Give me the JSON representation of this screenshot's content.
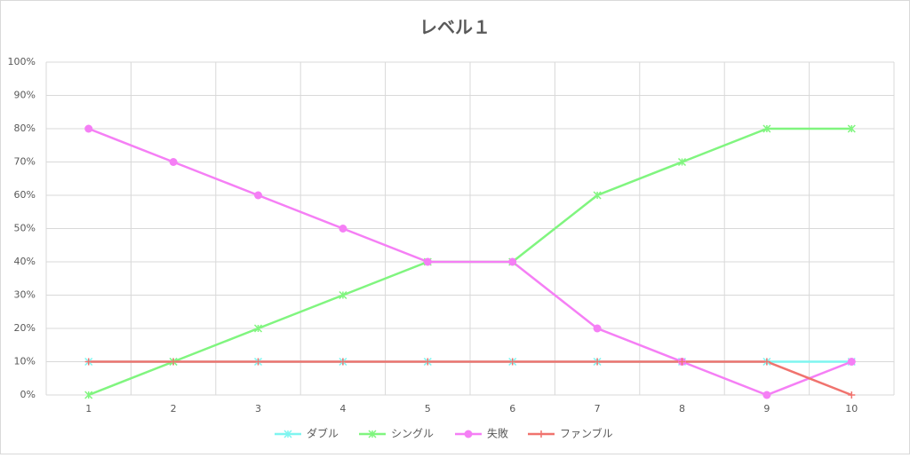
{
  "chart_data": {
    "type": "line",
    "title": "レベル１",
    "categories": [
      "1",
      "2",
      "3",
      "4",
      "5",
      "6",
      "7",
      "8",
      "9",
      "10"
    ],
    "series": [
      {
        "name": "ダブル",
        "color": "#7ff5f0",
        "marker": "star",
        "values": [
          10,
          10,
          10,
          10,
          10,
          10,
          10,
          10,
          10,
          10
        ]
      },
      {
        "name": "シングル",
        "color": "#80f57f",
        "marker": "star",
        "values": [
          0,
          10,
          20,
          30,
          40,
          40,
          60,
          70,
          80,
          80
        ]
      },
      {
        "name": "失敗",
        "color": "#f57ff5",
        "marker": "circle",
        "values": [
          80,
          70,
          60,
          50,
          40,
          40,
          20,
          10,
          0,
          10
        ]
      },
      {
        "name": "ファンブル",
        "color": "#f0736e",
        "marker": "plus",
        "values": [
          10,
          10,
          10,
          10,
          10,
          10,
          10,
          10,
          10,
          0
        ]
      }
    ],
    "ylim": [
      0,
      100
    ],
    "yticks": [
      {
        "value": 0,
        "label": "0%"
      },
      {
        "value": 10,
        "label": "10%"
      },
      {
        "value": 20,
        "label": "20%"
      },
      {
        "value": 30,
        "label": "30%"
      },
      {
        "value": 40,
        "label": "40%"
      },
      {
        "value": 50,
        "label": "50%"
      },
      {
        "value": 60,
        "label": "60%"
      },
      {
        "value": 70,
        "label": "70%"
      },
      {
        "value": 80,
        "label": "80%"
      },
      {
        "value": 90,
        "label": "90%"
      },
      {
        "value": 100,
        "label": "100%"
      }
    ],
    "grid": true,
    "legend": "bottom"
  }
}
